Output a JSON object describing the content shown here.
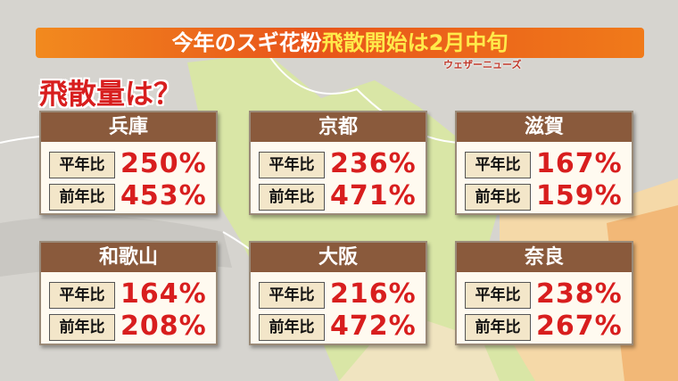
{
  "header": {
    "title_main": "今年のスギ花粉",
    "title_highlight": "飛散開始は2月中旬",
    "source": "ウェザーニューズ"
  },
  "heading": "飛散量は？",
  "cards": [
    {
      "region": "兵庫",
      "rows": [
        {
          "label": "平年比",
          "value": "250%"
        },
        {
          "label": "前年比",
          "value": "453%"
        }
      ]
    },
    {
      "region": "京都",
      "rows": [
        {
          "label": "平年比",
          "value": "236%"
        },
        {
          "label": "前年比",
          "value": "471%"
        }
      ]
    },
    {
      "region": "滋賀",
      "rows": [
        {
          "label": "平年比",
          "value": "167%"
        },
        {
          "label": "前年比",
          "value": "159%"
        }
      ]
    },
    {
      "region": "和歌山",
      "rows": [
        {
          "label": "平年比",
          "value": "164%"
        },
        {
          "label": "前年比",
          "value": "208%"
        }
      ]
    },
    {
      "region": "大阪",
      "rows": [
        {
          "label": "平年比",
          "value": "216%"
        },
        {
          "label": "前年比",
          "value": "472%"
        }
      ]
    },
    {
      "region": "奈良",
      "rows": [
        {
          "label": "平年比",
          "value": "238%"
        },
        {
          "label": "前年比",
          "value": "267%"
        }
      ]
    }
  ]
}
